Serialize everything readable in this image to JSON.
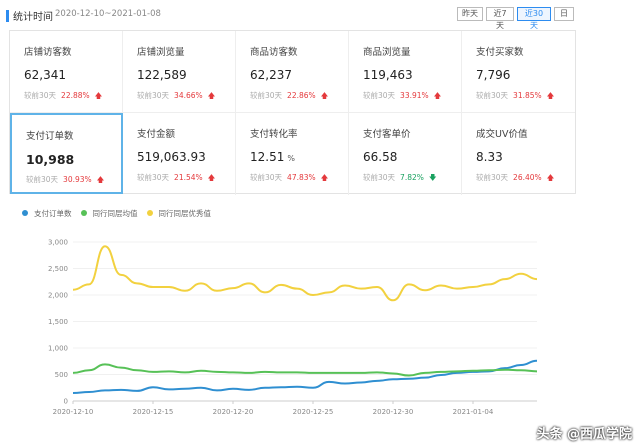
{
  "header": {
    "title": "统计时间",
    "date_range": "2020-12-10~2021-01-08",
    "buttons": [
      {
        "label": "昨天",
        "active": false
      },
      {
        "label": "近7天",
        "active": false
      },
      {
        "label": "近30天",
        "active": true
      },
      {
        "label": "日",
        "active": false
      }
    ]
  },
  "metrics": [
    {
      "label": "店铺访客数",
      "value": "62,341",
      "compare_label": "较前30天",
      "change": "22.88%",
      "direction": "up"
    },
    {
      "label": "店铺浏览量",
      "value": "122,589",
      "compare_label": "较前30天",
      "change": "34.66%",
      "direction": "up"
    },
    {
      "label": "商品访客数",
      "value": "62,237",
      "compare_label": "较前30天",
      "change": "22.86%",
      "direction": "up"
    },
    {
      "label": "商品浏览量",
      "value": "119,463",
      "compare_label": "较前30天",
      "change": "33.91%",
      "direction": "up"
    },
    {
      "label": "支付买家数",
      "value": "7,796",
      "compare_label": "较前30天",
      "change": "31.85%",
      "direction": "up"
    },
    {
      "label": "支付订单数",
      "value": "10,988",
      "compare_label": "较前30天",
      "change": "30.93%",
      "direction": "up",
      "selected": true
    },
    {
      "label": "支付金额",
      "value": "519,063.93",
      "compare_label": "较前30天",
      "change": "21.54%",
      "direction": "up"
    },
    {
      "label": "支付转化率",
      "value": "12.51",
      "unit": "%",
      "compare_label": "较前30天",
      "change": "47.83%",
      "direction": "up"
    },
    {
      "label": "支付客单价",
      "value": "66.58",
      "compare_label": "较前30天",
      "change": "7.82%",
      "direction": "down"
    },
    {
      "label": "成交UV价值",
      "value": "8.33",
      "compare_label": "较前30天",
      "change": "26.40%",
      "direction": "up"
    }
  ],
  "colors": {
    "accent": "#2d8cf0",
    "up": "#e4393c",
    "down": "#19a15f"
  },
  "watermark": "头条 @西瓜学院",
  "chart_data": {
    "type": "line",
    "x": [
      "2020-12-10",
      "2020-12-11",
      "2020-12-12",
      "2020-12-13",
      "2020-12-14",
      "2020-12-15",
      "2020-12-16",
      "2020-12-17",
      "2020-12-18",
      "2020-12-19",
      "2020-12-20",
      "2020-12-21",
      "2020-12-22",
      "2020-12-23",
      "2020-12-24",
      "2020-12-25",
      "2020-12-26",
      "2020-12-27",
      "2020-12-28",
      "2020-12-29",
      "2020-12-30",
      "2020-12-31",
      "2021-01-01",
      "2021-01-02",
      "2021-01-03",
      "2021-01-04",
      "2021-01-05",
      "2021-01-06",
      "2021-01-07",
      "2021-01-08"
    ],
    "x_tick_labels": [
      "2020-12-10",
      "2020-12-15",
      "2020-12-20",
      "2020-12-25",
      "2020-12-30",
      "2021-01-04"
    ],
    "ylim": [
      0,
      3000
    ],
    "y_ticks": [
      "0",
      "500",
      "1,000",
      "1,500",
      "2,000",
      "2,500",
      "3,000"
    ],
    "grid": true,
    "legend_position": "top-left",
    "series": [
      {
        "name": "支付订单数",
        "color": "#2f8fd1",
        "values": [
          150,
          170,
          200,
          210,
          190,
          260,
          220,
          230,
          250,
          200,
          230,
          210,
          250,
          260,
          270,
          250,
          360,
          330,
          350,
          380,
          410,
          420,
          440,
          490,
          530,
          550,
          560,
          620,
          680,
          760
        ]
      },
      {
        "name": "同行同层均值",
        "color": "#57c157",
        "values": [
          530,
          580,
          690,
          630,
          580,
          550,
          560,
          540,
          570,
          550,
          540,
          530,
          550,
          540,
          540,
          530,
          530,
          530,
          530,
          540,
          520,
          480,
          530,
          550,
          560,
          570,
          580,
          590,
          580,
          560
        ]
      },
      {
        "name": "同行同层优秀值",
        "color": "#f2d13f",
        "values": [
          2100,
          2200,
          2920,
          2380,
          2220,
          2150,
          2150,
          2080,
          2220,
          2080,
          2130,
          2220,
          2050,
          2190,
          2120,
          2000,
          2050,
          2180,
          2120,
          2150,
          1900,
          2200,
          2090,
          2180,
          2120,
          2150,
          2200,
          2300,
          2400,
          2300
        ]
      }
    ]
  }
}
